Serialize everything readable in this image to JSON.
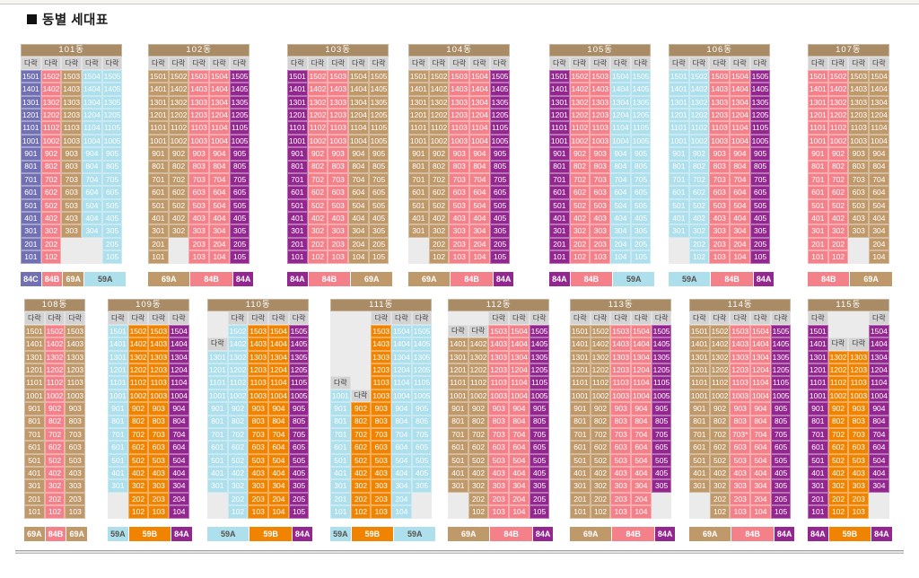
{
  "title": "동별 세대표",
  "labels": {
    "darak": "다락"
  },
  "colors": {
    "header_bg": "#a98c66",
    "darak_bg": "#d4d3d3",
    "blank_bg": "#ecebeb",
    "unit_types": {
      "84C": "#7170b2",
      "84B": "#f4818a",
      "84A": "#93278f",
      "69A": "#c0996a",
      "59A": "#addfec",
      "59B": "#f08300"
    }
  },
  "dark_text_types": [
    "59A"
  ],
  "top_floor": 15,
  "buildings": [
    {
      "name": "101동",
      "row": 1,
      "col_types": [
        "84C",
        "84B",
        "69A",
        "59A",
        "59A"
      ],
      "overrides": {
        "2:3": "b",
        "2:4": "b",
        "1:3": "b",
        "1:4": "b"
      },
      "legend": [
        {
          "label": "84C",
          "span": 1
        },
        {
          "label": "84B",
          "span": 1
        },
        {
          "label": "69A",
          "span": 1
        },
        {
          "label": "59A",
          "span": 2
        }
      ]
    },
    {
      "name": "102동",
      "row": 1,
      "col_types": [
        "69A",
        "69A",
        "84B",
        "84B",
        "84A"
      ],
      "overrides": {
        "2:2": "b",
        "1:2": "b"
      },
      "legend": [
        {
          "label": "69A",
          "span": 2
        },
        {
          "label": "84B",
          "span": 2
        },
        {
          "label": "84A",
          "span": 1
        }
      ]
    },
    {
      "name": "103동",
      "row": 1,
      "col_types": [
        "84A",
        "84B",
        "84B",
        "69A",
        "69A"
      ],
      "overrides": {},
      "legend": [
        {
          "label": "84A",
          "span": 1
        },
        {
          "label": "84B",
          "span": 2
        },
        {
          "label": "69A",
          "span": 2
        }
      ]
    },
    {
      "name": "104동",
      "row": 1,
      "col_types": [
        "69A",
        "69A",
        "84B",
        "84B",
        "84A"
      ],
      "overrides": {
        "2:1": "b",
        "1:1": "b"
      },
      "legend": [
        {
          "label": "69A",
          "span": 2
        },
        {
          "label": "84B",
          "span": 2
        },
        {
          "label": "84A",
          "span": 1
        }
      ]
    },
    {
      "name": "105동",
      "row": 1,
      "col_types": [
        "84A",
        "84B",
        "84B",
        "59A",
        "59A"
      ],
      "overrides": {},
      "legend": [
        {
          "label": "84A",
          "span": 1
        },
        {
          "label": "84B",
          "span": 2
        },
        {
          "label": "59A",
          "span": 2
        }
      ]
    },
    {
      "name": "106동",
      "row": 1,
      "col_types": [
        "59A",
        "59A",
        "84B",
        "84B",
        "84A"
      ],
      "overrides": {
        "2:1": "b",
        "1:1": "b"
      },
      "legend": [
        {
          "label": "59A",
          "span": 2
        },
        {
          "label": "84B",
          "span": 2
        },
        {
          "label": "84A",
          "span": 1
        }
      ]
    },
    {
      "name": "107동",
      "row": 1,
      "col_types": [
        "84B",
        "84B",
        "69A",
        "69A"
      ],
      "overrides": {
        "2:3": "b",
        "1:3": "b"
      },
      "legend": [
        {
          "label": "84B",
          "span": 2
        },
        {
          "label": "69A",
          "span": 2
        }
      ]
    },
    {
      "name": "108동",
      "row": 2,
      "col_types": [
        "69A",
        "84B",
        "69A"
      ],
      "overrides": {},
      "legend": [
        {
          "label": "69A",
          "span": 1
        },
        {
          "label": "84B",
          "span": 1
        },
        {
          "label": "69A",
          "span": 1
        }
      ]
    },
    {
      "name": "109동",
      "row": 2,
      "col_types": [
        "59A",
        "59B",
        "59B",
        "84A"
      ],
      "overrides": {
        "2:1": "b",
        "1:1": "b"
      },
      "legend": [
        {
          "label": "59A",
          "span": 1
        },
        {
          "label": "59B",
          "span": 2
        },
        {
          "label": "84A",
          "span": 1
        }
      ]
    },
    {
      "name": "110동",
      "row": 2,
      "col_types": [
        "59A",
        "59A",
        "59B",
        "59B",
        "84A"
      ],
      "overrides": {
        "h:1": "b",
        "15:1": "b",
        "14:1": "d",
        "2:1": "b",
        "1:1": "b"
      },
      "legend": [
        {
          "label": "59A",
          "span": 2
        },
        {
          "label": "59B",
          "span": 2
        },
        {
          "label": "84A",
          "span": 1
        }
      ]
    },
    {
      "name": "111동",
      "row": 2,
      "col_types": [
        "59A",
        "59B",
        "59B",
        "59A",
        "59A"
      ],
      "overrides": {
        "h:1": "b",
        "h:2": "b",
        "15:1": "b",
        "15:2": "b",
        "14:1": "b",
        "14:2": "b",
        "13:1": "b",
        "13:2": "b",
        "12:1": "b",
        "12:2": "b",
        "11:1": "d",
        "11:2": "b",
        "10:2": "d",
        "2:5": "b",
        "1:5": "b"
      },
      "legend": [
        {
          "label": "59A",
          "span": 1
        },
        {
          "label": "59B",
          "span": 2
        },
        {
          "label": "59A",
          "span": 2
        }
      ]
    },
    {
      "name": "112동",
      "row": 2,
      "col_types": [
        "69A",
        "69A",
        "84B",
        "84B",
        "84A"
      ],
      "overrides": {
        "h:1": "b",
        "h:2": "b",
        "15:1": "d",
        "15:2": "d",
        "2:1": "b",
        "1:1": "b"
      },
      "legend": [
        {
          "label": "69A",
          "span": 2
        },
        {
          "label": "84B",
          "span": 2
        },
        {
          "label": "84A",
          "span": 1
        }
      ]
    },
    {
      "name": "113동",
      "row": 2,
      "col_types": [
        "69A",
        "69A",
        "84B",
        "84B",
        "84A"
      ],
      "overrides": {
        "2:5": "b",
        "1:5": "b"
      },
      "legend": [
        {
          "label": "69A",
          "span": 2
        },
        {
          "label": "84B",
          "span": 2
        },
        {
          "label": "84A",
          "span": 1
        }
      ]
    },
    {
      "name": "114동",
      "row": 2,
      "col_types": [
        "69A",
        "69A",
        "84B",
        "84B",
        "84A"
      ],
      "overrides": {
        "2:1": "b",
        "1:1": "b",
        "7:3": "t:703*"
      },
      "legend": [
        {
          "label": "69A",
          "span": 2
        },
        {
          "label": "84B",
          "span": 2
        },
        {
          "label": "84A",
          "span": 1
        }
      ]
    },
    {
      "name": "115동",
      "row": 2,
      "col_types": [
        "84A",
        "59B",
        "59B",
        "84A"
      ],
      "overrides": {
        "h:2": "b",
        "h:3": "b",
        "15:2": "b",
        "15:3": "b",
        "14:2": "d",
        "14:3": "d",
        "2:4": "b",
        "1:4": "b"
      },
      "legend": [
        {
          "label": "84A",
          "span": 1
        },
        {
          "label": "59B",
          "span": 2
        },
        {
          "label": "84A",
          "span": 1
        }
      ]
    }
  ]
}
